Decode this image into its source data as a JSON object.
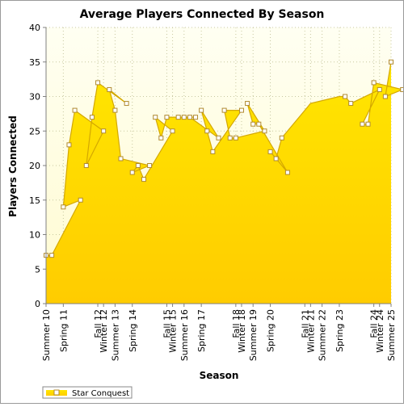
{
  "chart_data": {
    "type": "area",
    "title": "Average Players Connected By Season",
    "xlabel": "Season",
    "ylabel": "Players Connected",
    "ylim": [
      0,
      40
    ],
    "yticks": [
      0,
      5,
      10,
      15,
      20,
      25,
      30,
      35,
      40
    ],
    "grid": true,
    "legend_position": "bottom-left",
    "colors": {
      "fill_top": "#ffe600",
      "fill_bottom": "#ffcc00",
      "line": "#d4a800",
      "marker_fill": "#ffffff",
      "marker_stroke": "#b08a30",
      "plot_bg_top": "#fffff2",
      "plot_bg_bottom": "#fffbd0",
      "grid": "#c8c8a0"
    },
    "x_tick_labels": [
      "Summer 10",
      "Spring 11",
      "Winter 12",
      "Fall 12",
      "Summer 13",
      "Spring 14",
      "Winter 15",
      "Fall 15",
      "Summer 16",
      "Spring 17",
      "Winter 18",
      "Fall 18",
      "Summer 19",
      "Spring 20",
      "Winter 21",
      "Fall 21",
      "Summer 22",
      "Spring 23",
      "Winter 24",
      "Fall 24",
      "Summer 25"
    ],
    "series": [
      {
        "name": "Star Conquest",
        "x": [
          "Summer 10",
          "Fall 10",
          "Winter 11",
          "Spring 11",
          "Summer 11",
          "Fall 11",
          "Winter 12",
          "Spring 12",
          "Summer 12",
          "Fall 12",
          "Winter 13",
          "Spring 13",
          "Summer 13",
          "Fall 13",
          "Winter 14",
          "Spring 14",
          "Summer 14",
          "Fall 14",
          "Winter 15",
          "Spring 15",
          "Summer 15",
          "Fall 15",
          "Winter 16",
          "Spring 16",
          "Summer 16",
          "Fall 16",
          "Winter 17",
          "Spring 17",
          "Summer 17",
          "Fall 17",
          "Winter 18",
          "Spring 18",
          "Summer 18",
          "Fall 18",
          "Winter 19",
          "Spring 19",
          "Summer 19",
          "Fall 19",
          "Winter 20",
          "Spring 20",
          "Summer 20",
          "Fall 20",
          "Winter 21",
          "Spring 23",
          "Summer 23",
          "Fall 23",
          "Winter 24",
          "Spring 24",
          "Summer 24",
          "Fall 24",
          "Winter 25",
          "Spring 25",
          "Summer 25"
        ],
        "values": [
          7,
          7,
          15,
          14,
          23,
          28,
          25,
          20,
          27,
          32,
          29,
          31,
          28,
          21,
          20,
          19,
          20,
          18,
          25,
          27,
          24,
          27,
          27,
          27,
          27,
          27,
          24,
          28,
          25,
          22,
          28,
          28,
          24,
          24,
          25,
          29,
          26,
          26,
          19,
          22,
          21,
          24,
          29,
          30,
          30,
          29,
          31,
          26,
          26,
          32,
          31,
          30,
          35
        ]
      }
    ]
  }
}
